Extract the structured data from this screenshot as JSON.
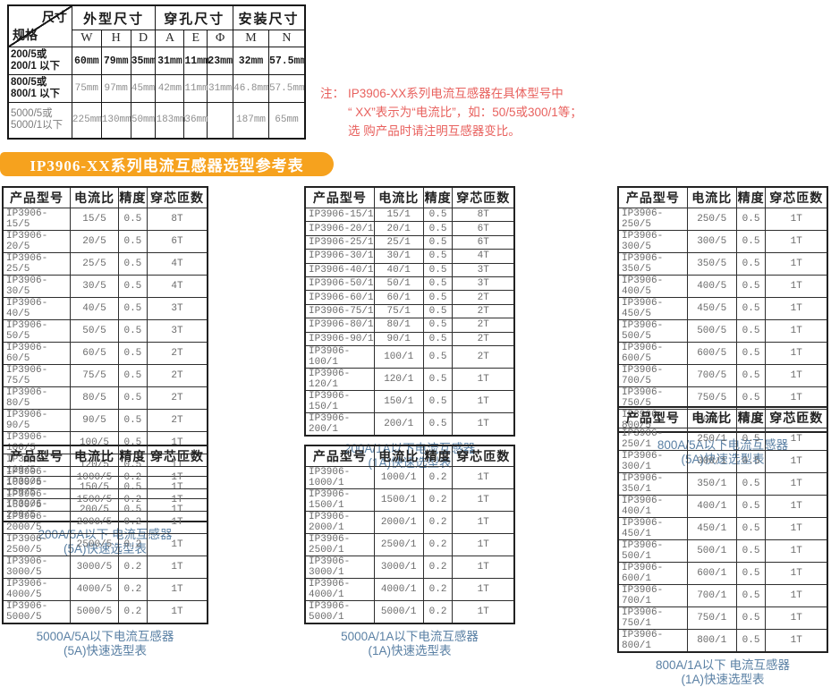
{
  "dimension_table": {
    "corner": {
      "top": "尺寸",
      "bottom": "规格"
    },
    "groups": [
      {
        "label": "外型尺寸",
        "span": 3
      },
      {
        "label": "穿孔尺寸",
        "span": 3
      },
      {
        "label": "安装尺寸",
        "span": 2
      }
    ],
    "columns": [
      "W",
      "H",
      "D",
      "A",
      "E",
      "Φ",
      "M",
      "N"
    ],
    "rows": [
      [
        "200/5或200/1 以下",
        "60mm",
        "79mm",
        "35mm",
        "31mm",
        "11mm",
        "23mm",
        "32mm",
        "57.5mm"
      ],
      [
        "800/5或800/1 以下",
        "75mm",
        "97mm",
        "45mm",
        "42mm",
        "11mm",
        "31mm",
        "46.8mm",
        "57.5mm"
      ],
      [
        "5000/5或 5000/1以下",
        "225mm",
        "130mm",
        "50mm",
        "183mm",
        "36mm",
        "",
        "187mm",
        "65mm"
      ]
    ]
  },
  "note": {
    "prefix": "注：",
    "lines": [
      "IP3906-XX系列电流互感器在具体型号中",
      "“ XX”表示为“电流比”，如：50/5或300/1等；",
      "选 购产品时请注明互感器变比。"
    ]
  },
  "banner": {
    "title": "IP3906-XX系列电流互感器选型参考表",
    "color": "#f6a21e"
  },
  "colors": {
    "note_red": "#e8615e",
    "caption_blue": "#5a80a4",
    "banner_orange": "#f6a21e"
  },
  "selection_tables": [
    {
      "headers": [
        "产品型号",
        "电流比",
        "精度",
        "穿芯匝数"
      ],
      "rows": [
        [
          "IP3906-15/5",
          "15/5",
          "0.5",
          "8T"
        ],
        [
          "IP3906-20/5",
          "20/5",
          "0.5",
          "6T"
        ],
        [
          "IP3906-25/5",
          "25/5",
          "0.5",
          "4T"
        ],
        [
          "IP3906-30/5",
          "30/5",
          "0.5",
          "4T"
        ],
        [
          "IP3906-40/5",
          "40/5",
          "0.5",
          "3T"
        ],
        [
          "IP3906-50/5",
          "50/5",
          "0.5",
          "3T"
        ],
        [
          "IP3906-60/5",
          "60/5",
          "0.5",
          "2T"
        ],
        [
          "IP3906-75/5",
          "75/5",
          "0.5",
          "2T"
        ],
        [
          "IP3906-80/5",
          "80/5",
          "0.5",
          "2T"
        ],
        [
          "IP3906-90/5",
          "90/5",
          "0.5",
          "2T"
        ],
        [
          "IP3906-100/5",
          "100/5",
          "0.5",
          "1T"
        ],
        [
          "IP3906-120/5",
          "120/5",
          "0.5",
          "1T"
        ],
        [
          "IP3906-150/5",
          "150/5",
          "0.5",
          "1T"
        ],
        [
          "IP3906-200/5",
          "200/5",
          "0.5",
          "1T"
        ]
      ],
      "caption": [
        "200A/5A以下 电流互感器",
        "(5A)快速选型表"
      ]
    },
    {
      "headers": [
        "产品型号",
        "电流比",
        "精度",
        "穿芯匝数"
      ],
      "rows": [
        [
          "IP3906-15/1",
          "15/1",
          "0.5",
          "8T"
        ],
        [
          "IP3906-20/1",
          "20/1",
          "0.5",
          "6T"
        ],
        [
          "IP3906-25/1",
          "25/1",
          "0.5",
          "6T"
        ],
        [
          "IP3906-30/1",
          "30/1",
          "0.5",
          "4T"
        ],
        [
          "IP3906-40/1",
          "40/1",
          "0.5",
          "3T"
        ],
        [
          "IP3906-50/1",
          "50/1",
          "0.5",
          "3T"
        ],
        [
          "IP3906-60/1",
          "60/1",
          "0.5",
          "2T"
        ],
        [
          "IP3906-75/1",
          "75/1",
          "0.5",
          "2T"
        ],
        [
          "IP3906-80/1",
          "80/1",
          "0.5",
          "2T"
        ],
        [
          "IP3906-90/1",
          "90/1",
          "0.5",
          "2T"
        ],
        [
          "IP3906-100/1",
          "100/1",
          "0.5",
          "2T"
        ],
        [
          "IP3906-120/1",
          "120/1",
          "0.5",
          "1T"
        ],
        [
          "IP3906-150/1",
          "150/1",
          "0.5",
          "1T"
        ],
        [
          "IP3906-200/1",
          "200/1",
          "0.5",
          "1T"
        ]
      ],
      "caption": [
        "200A/1A以下电流互感器",
        "(1A)快速选型表"
      ]
    },
    {
      "headers": [
        "产品型号",
        "电流比",
        "精度",
        "穿芯匝数"
      ],
      "rows": [
        [
          "IP3906-250/5",
          "250/5",
          "0.5",
          "1T"
        ],
        [
          "IP3906-300/5",
          "300/5",
          "0.5",
          "1T"
        ],
        [
          "IP3906-350/5",
          "350/5",
          "0.5",
          "1T"
        ],
        [
          "IP3906-400/5",
          "400/5",
          "0.5",
          "1T"
        ],
        [
          "IP3906-450/5",
          "450/5",
          "0.5",
          "1T"
        ],
        [
          "IP3906-500/5",
          "500/5",
          "0.5",
          "1T"
        ],
        [
          "IP3906-600/5",
          "600/5",
          "0.5",
          "1T"
        ],
        [
          "IP3906-700/5",
          "700/5",
          "0.5",
          "1T"
        ],
        [
          "IP3906-750/5",
          "750/5",
          "0.5",
          "1T"
        ],
        [
          "IP3906-800/5",
          "800/5",
          "0.5",
          "1T"
        ]
      ],
      "caption": [
        "800A/5A以下电流互感器",
        "(5A)快速选型表"
      ]
    },
    {
      "headers": [
        "产品型号",
        "电流比",
        "精度",
        "穿芯匝数"
      ],
      "rows": [
        [
          "IP3906-1000/5",
          "1000/5",
          "0.2",
          "1T"
        ],
        [
          "IP3906-1500/5",
          "1500/5",
          "0.2",
          "1T"
        ],
        [
          "IP3906-2000/5",
          "2000/5",
          "0.2",
          "1T"
        ],
        [
          "IP3906-2500/5",
          "2500/5",
          "0.2",
          "1T"
        ],
        [
          "IP3906-3000/5",
          "3000/5",
          "0.2",
          "1T"
        ],
        [
          "IP3906-4000/5",
          "4000/5",
          "0.2",
          "1T"
        ],
        [
          "IP3906-5000/5",
          "5000/5",
          "0.2",
          "1T"
        ]
      ],
      "caption": [
        "5000A/5A以下电流互感器",
        "(5A)快速选型表"
      ]
    },
    {
      "headers": [
        "产品型号",
        "电流比",
        "精度",
        "穿芯匝数"
      ],
      "rows": [
        [
          "IP3906-1000/1",
          "1000/1",
          "0.2",
          "1T"
        ],
        [
          "IP3906-1500/1",
          "1500/1",
          "0.2",
          "1T"
        ],
        [
          "IP3906-2000/1",
          "2000/1",
          "0.2",
          "1T"
        ],
        [
          "IP3906-2500/1",
          "2500/1",
          "0.2",
          "1T"
        ],
        [
          "IP3906-3000/1",
          "3000/1",
          "0.2",
          "1T"
        ],
        [
          "IP3906-4000/1",
          "4000/1",
          "0.2",
          "1T"
        ],
        [
          "IP3906-5000/1",
          "5000/1",
          "0.2",
          "1T"
        ]
      ],
      "caption": [
        "5000A/1A以下电流互感器",
        "(1A)快速选型表"
      ]
    },
    {
      "headers": [
        "产品型号",
        "电流比",
        "精度",
        "穿芯匝数"
      ],
      "rows": [
        [
          "IP3906-250/1",
          "250/1",
          "0.5",
          "1T"
        ],
        [
          "IP3906-300/1",
          "300/1",
          "0.5",
          "1T"
        ],
        [
          "IP3906-350/1",
          "350/1",
          "0.5",
          "1T"
        ],
        [
          "IP3906-400/1",
          "400/1",
          "0.5",
          "1T"
        ],
        [
          "IP3906-450/1",
          "450/1",
          "0.5",
          "1T"
        ],
        [
          "IP3906-500/1",
          "500/1",
          "0.5",
          "1T"
        ],
        [
          "IP3906-600/1",
          "600/1",
          "0.5",
          "1T"
        ],
        [
          "IP3906-700/1",
          "700/1",
          "0.5",
          "1T"
        ],
        [
          "IP3906-750/1",
          "750/1",
          "0.5",
          "1T"
        ],
        [
          "IP3906-800/1",
          "800/1",
          "0.5",
          "1T"
        ]
      ],
      "caption": [
        "800A/1A以下 电流互感器",
        "(1A)快速选型表"
      ]
    }
  ]
}
